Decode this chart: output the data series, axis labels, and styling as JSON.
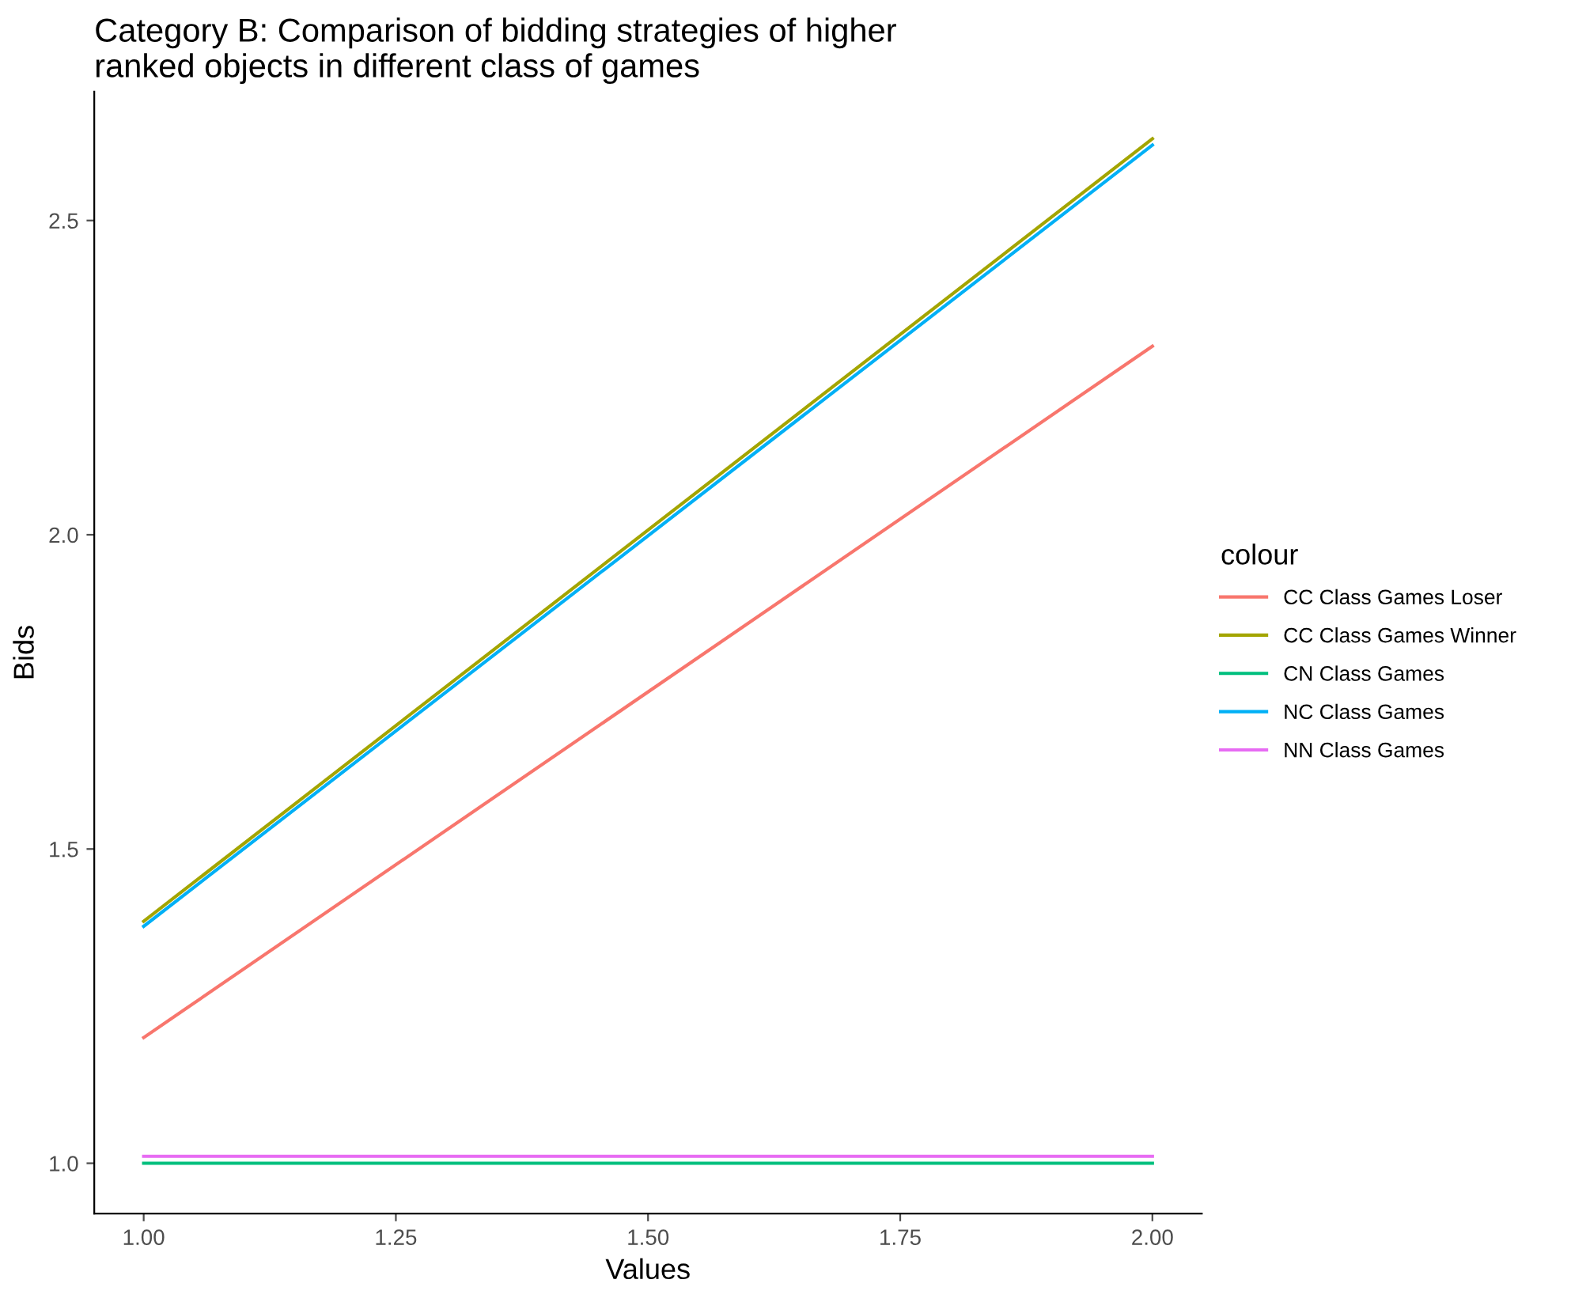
{
  "chart_data": {
    "type": "line",
    "title": "Category B: Comparison of bidding strategies of higher\nranked objects in different class of games",
    "xlabel": "Values",
    "ylabel": "Bids",
    "legend_title": "colour",
    "x": [
      1,
      2
    ],
    "xlim": [
      0.951,
      2.049
    ],
    "xticks": [
      {
        "value": 1,
        "label": "1.00"
      },
      {
        "value": 1.25,
        "label": "1.25"
      },
      {
        "value": 1.5,
        "label": "1.50"
      },
      {
        "value": 1.75,
        "label": "1.75"
      },
      {
        "value": 2,
        "label": "2.00"
      }
    ],
    "ylim": [
      0.92,
      2.705
    ],
    "yticks": [
      {
        "value": 1,
        "label": "1.0"
      },
      {
        "value": 1.5,
        "label": "1.5"
      },
      {
        "value": 2,
        "label": "2.0"
      },
      {
        "value": 2.5,
        "label": "2.5"
      }
    ],
    "series": [
      {
        "name": "CC Class Games Loser",
        "color": "#f8766d",
        "values": [
          1.2,
          2.3
        ]
      },
      {
        "name": "CC Class Games Winner",
        "color": "#a3a500",
        "values": [
          1.385,
          2.63
        ]
      },
      {
        "name": "CN Class Games",
        "color": "#00bf7d",
        "values": [
          1.0,
          1.0
        ]
      },
      {
        "name": "NC Class Games",
        "color": "#00b0f6",
        "values": [
          1.377,
          2.62
        ]
      },
      {
        "name": "NN Class Games",
        "color": "#e76bf3",
        "values": [
          1.011,
          1.011
        ]
      }
    ],
    "grid": false,
    "legend": "right",
    "marker": "none",
    "line_style": "solid"
  }
}
